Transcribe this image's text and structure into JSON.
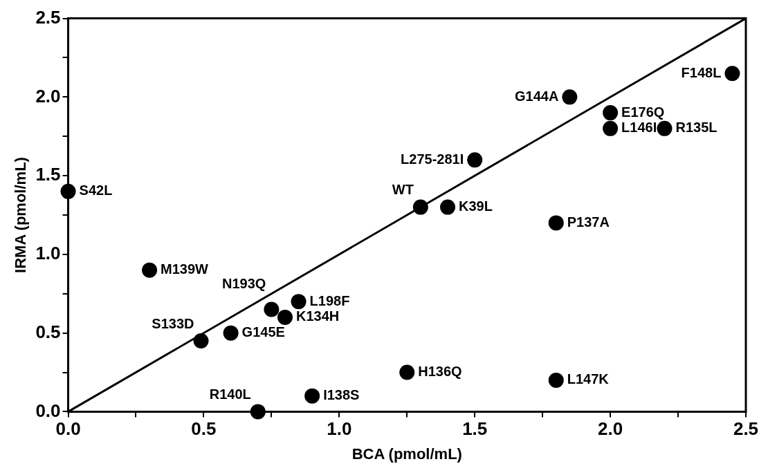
{
  "chart_data": {
    "type": "scatter",
    "xlabel": "BCA (pmol/mL)",
    "ylabel": "IRMA (pmol/mL)",
    "xlim": [
      0,
      2.5
    ],
    "ylim": [
      0,
      2.5
    ],
    "xticks": [
      {
        "value": 0,
        "label": "0.0"
      },
      {
        "value": 0.25,
        "label": null
      },
      0.5,
      {
        "value": 0.75,
        "label": null
      },
      {
        "value": 1,
        "label": "1.0"
      },
      {
        "value": 1.25,
        "label": null
      },
      1.5,
      {
        "value": 1.75,
        "label": null
      },
      {
        "value": 2,
        "label": "2.0"
      },
      {
        "value": 2.25,
        "label": null
      },
      2.5
    ],
    "yticks": [
      {
        "value": 0,
        "label": "0.0"
      },
      {
        "value": 0.25,
        "label": null
      },
      0.5,
      {
        "value": 0.75,
        "label": null
      },
      {
        "value": 1,
        "label": "1.0"
      },
      {
        "value": 1.25,
        "label": null
      },
      1.5,
      {
        "value": 1.75,
        "label": null
      },
      {
        "value": 2,
        "label": "2.0"
      },
      {
        "value": 2.25,
        "label": null
      },
      2.5
    ],
    "grid": false,
    "legend": false,
    "marker": "circle",
    "series": [
      {
        "color": "#000000",
        "x": [
          0,
          0.3,
          0.75,
          0.85,
          0.8,
          0.49,
          0.6,
          0.7,
          0.9,
          1.25,
          1.8,
          1.3,
          1.4,
          1.5,
          1.8,
          1.85,
          2.0,
          2.0,
          2.2,
          2.45
        ],
        "values": [
          1.4,
          0.9,
          0.65,
          0.7,
          0.6,
          0.45,
          0.5,
          0,
          0.1,
          0.25,
          0.2,
          1.3,
          1.3,
          1.6,
          1.2,
          2.0,
          1.9,
          1.8,
          1.8,
          2.15
        ]
      },
      {
        "type": "line",
        "color": "#000000",
        "x": [
          0,
          2.5
        ],
        "values": [
          0,
          2.5
        ],
        "marker": "none",
        "line_style": "solid"
      }
    ],
    "annotations": [
      {
        "text": "S42L",
        "x": 0,
        "y": 1.4
      },
      {
        "text": "M139W",
        "x": 0.3,
        "y": 0.9
      },
      {
        "text": "N193Q",
        "x": 0.75,
        "y": 0.65
      },
      {
        "text": "L198F",
        "x": 0.85,
        "y": 0.7
      },
      {
        "text": "K134H",
        "x": 0.8,
        "y": 0.6
      },
      {
        "text": "S133D",
        "x": 0.49,
        "y": 0.45
      },
      {
        "text": "G145E",
        "x": 0.6,
        "y": 0.5
      },
      {
        "text": "R140L",
        "x": 0.7,
        "y": 0
      },
      {
        "text": "I138S",
        "x": 0.9,
        "y": 0.1
      },
      {
        "text": "H136Q",
        "x": 1.25,
        "y": 0.25
      },
      {
        "text": "L147K",
        "x": 1.8,
        "y": 0.2
      },
      {
        "text": "WT",
        "x": 1.3,
        "y": 1.3
      },
      {
        "text": "K39L",
        "x": 1.4,
        "y": 1.3
      },
      {
        "text": "L275-281I",
        "x": 1.5,
        "y": 1.6
      },
      {
        "text": "P137A",
        "x": 1.8,
        "y": 1.2
      },
      {
        "text": "G144A",
        "x": 1.85,
        "y": 2.0
      },
      {
        "text": "E176Q",
        "x": 2.0,
        "y": 1.9
      },
      {
        "text": "L146I",
        "x": 2.0,
        "y": 1.8
      },
      {
        "text": "R135L",
        "x": 2.2,
        "y": 1.8
      },
      {
        "text": "F148L",
        "x": 2.45,
        "y": 2.15
      }
    ]
  }
}
